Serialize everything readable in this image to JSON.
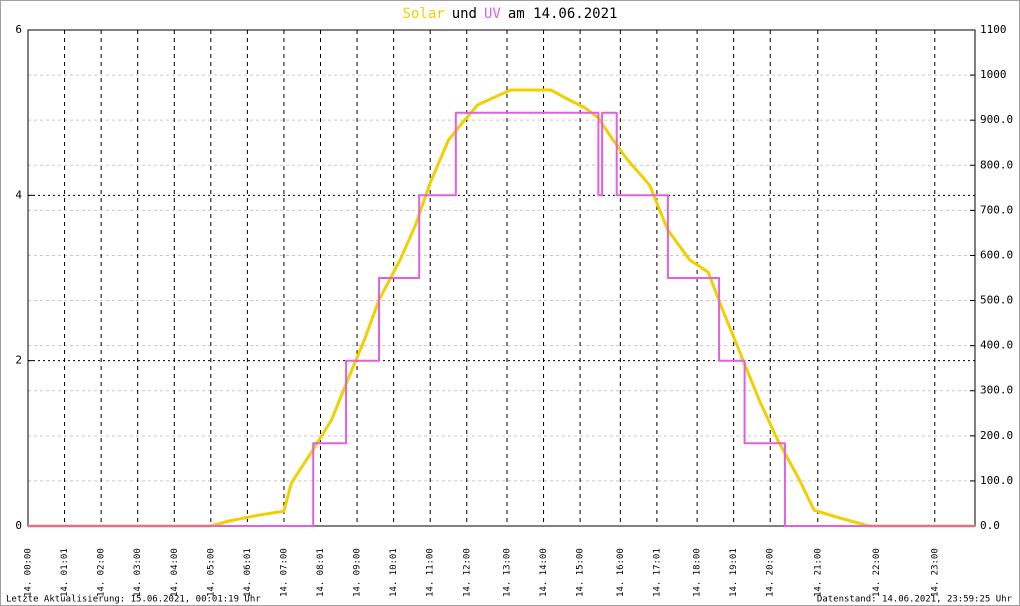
{
  "chart_data": {
    "type": "line",
    "title": {
      "joiner": "und",
      "date": "am 14.06.2021"
    },
    "footer_left": "Letzte Aktualisierung: 15.06.2021, 00:01:19 Uhr",
    "footer_right": "Datenstand: 14.06.2021, 23:59:25 Uhr",
    "xlim": [
      0,
      25.9
    ],
    "xticks": [
      {
        "value": 0,
        "label": "14. 00:00"
      },
      {
        "value": 1.0,
        "label": "14. 01:01"
      },
      {
        "value": 2.0,
        "label": "14. 02:00"
      },
      {
        "value": 3.0,
        "label": "14. 03:00"
      },
      {
        "value": 4.0,
        "label": "14. 04:00"
      },
      {
        "value": 5.0,
        "label": "14. 05:00"
      },
      {
        "value": 6.0,
        "label": "14. 06:01"
      },
      {
        "value": 7.0,
        "label": "14. 07:00"
      },
      {
        "value": 8.0,
        "label": "14. 08:01"
      },
      {
        "value": 9.0,
        "label": "14. 09:00"
      },
      {
        "value": 10.0,
        "label": "14. 10:01"
      },
      {
        "value": 11.0,
        "label": "14. 11:00"
      },
      {
        "value": 12.0,
        "label": "14. 12:00"
      },
      {
        "value": 13.1,
        "label": "14. 13:00"
      },
      {
        "value": 14.1,
        "label": "14. 14:00"
      },
      {
        "value": 15.1,
        "label": "14. 15:00"
      },
      {
        "value": 16.2,
        "label": "14. 16:00"
      },
      {
        "value": 17.2,
        "label": "14. 17:01"
      },
      {
        "value": 18.3,
        "label": "14. 18:00"
      },
      {
        "value": 19.3,
        "label": "14. 19:01"
      },
      {
        "value": 20.3,
        "label": "14. 20:00"
      },
      {
        "value": 21.6,
        "label": "14. 21:00"
      },
      {
        "value": 23.2,
        "label": "14. 22:00"
      },
      {
        "value": 24.8,
        "label": "14. 23:00"
      }
    ],
    "ylim": [
      0,
      6
    ],
    "yticks": [
      0,
      2,
      4,
      6
    ],
    "y2lim": [
      0,
      1100
    ],
    "y2ticks": [
      {
        "value": 0,
        "label": "0.0"
      },
      {
        "value": 100,
        "label": "100.0"
      },
      {
        "value": 200,
        "label": "200.0"
      },
      {
        "value": 300,
        "label": "300.0"
      },
      {
        "value": 400,
        "label": "400.0"
      },
      {
        "value": 500,
        "label": "500.0"
      },
      {
        "value": 600,
        "label": "600.0"
      },
      {
        "value": 700,
        "label": "700.0"
      },
      {
        "value": 800,
        "label": "800.0"
      },
      {
        "value": 900,
        "label": "900.0"
      },
      1000,
      1100
    ],
    "grid": true,
    "series": [
      {
        "name": "Solar",
        "color": "#f0d000",
        "axis": "y2",
        "x": [
          0,
          5.0,
          5.5,
          6.3,
          7.0,
          7.2,
          7.7,
          8.3,
          8.8,
          9.2,
          9.6,
          10.2,
          10.6,
          11.0,
          11.5,
          11.9,
          12.3,
          12.9,
          13.2,
          13.7,
          14.3,
          14.8,
          15.2,
          15.6,
          16.0,
          16.4,
          17.0,
          17.5,
          18.1,
          18.6,
          19.0,
          19.5,
          20.0,
          20.5,
          21.1,
          21.5,
          22.2,
          23.0,
          25.9
        ],
        "values": [
          0,
          0,
          11,
          24,
          33,
          95,
          157,
          235,
          335,
          413,
          501,
          594,
          668,
          761,
          856,
          896,
          934,
          956,
          967,
          967,
          967,
          945,
          929,
          905,
          856,
          812,
          756,
          656,
          590,
          563,
          479,
          379,
          279,
          191,
          102,
          35,
          18,
          0,
          0
        ]
      },
      {
        "name": "UV",
        "color": "#e060e0",
        "x": [
          0,
          7.8,
          7.8,
          8.7,
          8.7,
          9.6,
          9.6,
          10.7,
          10.7,
          11.7,
          11.7,
          15.6,
          15.6,
          15.7,
          15.7,
          16.1,
          16.1,
          17.5,
          17.5,
          18.9,
          18.9,
          19.6,
          19.6,
          20.7,
          20.7,
          25.9
        ],
        "values": [
          0,
          0,
          1,
          1,
          2,
          2,
          3,
          3,
          4,
          4,
          5,
          5,
          4,
          4,
          5,
          5,
          4,
          4,
          3,
          3,
          2,
          2,
          1,
          1,
          0,
          0
        ]
      }
    ]
  }
}
